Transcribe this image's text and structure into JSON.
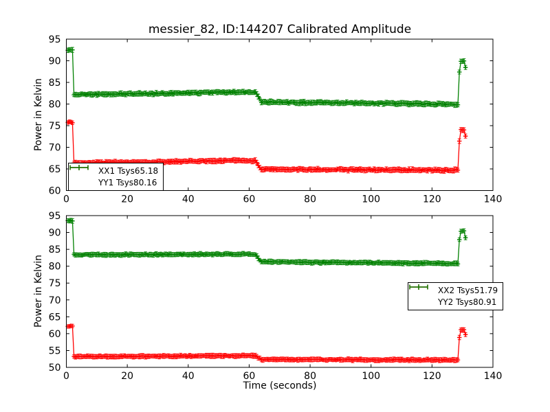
{
  "figure": {
    "title": "messier_82, ID:144207 Calibrated Amplitude",
    "xlabel": "Time (seconds)",
    "background": "#ffffff",
    "frame_color": "#000000"
  },
  "chart_data": [
    {
      "type": "line",
      "subplot": "top",
      "ylabel": "Power in Kelvin",
      "xlim": [
        0,
        140
      ],
      "ylim": [
        60,
        95
      ],
      "xticks": [
        0,
        20,
        40,
        60,
        80,
        100,
        120,
        140
      ],
      "yticks": [
        60,
        65,
        70,
        75,
        80,
        85,
        90,
        95
      ],
      "grid": false,
      "legend_position": "lower-left",
      "series": [
        {
          "name": "XX1 Tsys65.18",
          "color": "#ff0000",
          "marker": "plus-with-errorbars",
          "sample_step_s": 0.5,
          "x_range": [
            0.5,
            131
          ],
          "errorbar_half_k": 0.5,
          "scatter_k": 0.15,
          "breakpoints": [
            [
              0.5,
              75.8
            ],
            [
              2.0,
              75.8
            ],
            [
              2.5,
              66.4
            ],
            [
              30,
              66.6
            ],
            [
              58,
              67.0
            ],
            [
              62,
              66.9
            ],
            [
              64,
              64.95
            ],
            [
              100,
              64.8
            ],
            [
              128.5,
              64.7
            ],
            [
              129.0,
              71.5
            ],
            [
              129.5,
              74.0
            ],
            [
              130.5,
              74.0
            ],
            [
              131.0,
              72.5
            ]
          ]
        },
        {
          "name": "YY1 Tsys80.16",
          "color": "#008000",
          "marker": "plus-with-errorbars",
          "sample_step_s": 0.5,
          "x_range": [
            0.5,
            131
          ],
          "errorbar_half_k": 0.5,
          "scatter_k": 0.17,
          "breakpoints": [
            [
              0.5,
              92.5
            ],
            [
              2.0,
              92.5
            ],
            [
              2.5,
              82.2
            ],
            [
              30,
              82.4
            ],
            [
              58,
              82.8
            ],
            [
              62,
              82.7
            ],
            [
              64,
              80.45
            ],
            [
              100,
              80.2
            ],
            [
              128.5,
              79.9
            ],
            [
              129.0,
              87.5
            ],
            [
              129.5,
              90.0
            ],
            [
              130.5,
              90.0
            ],
            [
              131.0,
              88.5
            ]
          ]
        }
      ]
    },
    {
      "type": "line",
      "subplot": "bottom",
      "ylabel": "Power in Kelvin",
      "xlabel": "Time (seconds)",
      "xlim": [
        0,
        140
      ],
      "ylim": [
        50,
        95
      ],
      "xticks": [
        0,
        20,
        40,
        60,
        80,
        100,
        120,
        140
      ],
      "yticks": [
        50,
        55,
        60,
        65,
        70,
        75,
        80,
        85,
        90,
        95
      ],
      "grid": false,
      "legend_position": "center-right",
      "series": [
        {
          "name": "XX2 Tsys51.79",
          "color": "#ff0000",
          "marker": "plus-with-errorbars",
          "sample_step_s": 0.5,
          "x_range": [
            0.5,
            131
          ],
          "errorbar_half_k": 0.6,
          "scatter_k": 0.13,
          "breakpoints": [
            [
              0.5,
              62.2
            ],
            [
              2.0,
              62.2
            ],
            [
              2.5,
              53.25
            ],
            [
              30,
              53.3
            ],
            [
              58,
              53.45
            ],
            [
              62,
              53.4
            ],
            [
              64,
              52.35
            ],
            [
              100,
              52.25
            ],
            [
              128.5,
              52.15
            ],
            [
              129.0,
              58.8
            ],
            [
              129.5,
              61.2
            ],
            [
              130.5,
              61.2
            ],
            [
              131.0,
              59.8
            ]
          ]
        },
        {
          "name": "YY2 Tsys80.91",
          "color": "#008000",
          "marker": "plus-with-errorbars",
          "sample_step_s": 0.5,
          "x_range": [
            0.5,
            131
          ],
          "errorbar_half_k": 0.6,
          "scatter_k": 0.15,
          "breakpoints": [
            [
              0.5,
              93.5
            ],
            [
              2.0,
              93.5
            ],
            [
              2.5,
              83.4
            ],
            [
              30,
              83.45
            ],
            [
              58,
              83.6
            ],
            [
              62,
              83.5
            ],
            [
              64,
              81.3
            ],
            [
              100,
              81.0
            ],
            [
              128.5,
              80.8
            ],
            [
              129.0,
              88.0
            ],
            [
              129.5,
              90.5
            ],
            [
              130.5,
              90.5
            ],
            [
              131.0,
              88.5
            ]
          ]
        }
      ]
    }
  ]
}
